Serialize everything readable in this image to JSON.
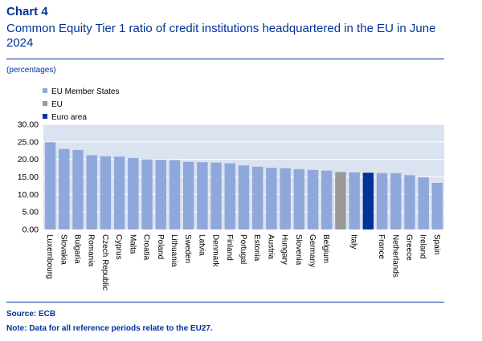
{
  "header": {
    "chart_number": "Chart 4",
    "title": "Common Equity Tier 1 ratio of credit institutions headquartered in the EU in June 2024",
    "units": "(percentages)"
  },
  "footer": {
    "source": "Source: ECB",
    "note": "Note: Data for all reference periods relate to the EU27."
  },
  "colors": {
    "member": "#8FA8DC",
    "eu": "#999999",
    "euro_area": "#003299",
    "plot_bg": "#DCE3F0",
    "grid": "#FFFFFF",
    "text": "#003299",
    "axis_text": "#000000"
  },
  "chart_data": {
    "type": "bar",
    "title": "Common Equity Tier 1 ratio of credit institutions headquartered in the EU in June 2024",
    "ylabel": "(percentages)",
    "xlabel": "",
    "ylim": [
      0,
      30
    ],
    "yticks": [
      "0.00",
      "5.00",
      "10.00",
      "15.00",
      "20.00",
      "25.00",
      "30.00"
    ],
    "grid": true,
    "legend_position": "top-left",
    "legend": [
      {
        "label": "EU Member States",
        "group": "member"
      },
      {
        "label": "EU",
        "group": "eu"
      },
      {
        "label": "Euro area",
        "group": "euro_area"
      }
    ],
    "categories": [
      "Luxembourg",
      "Slovakia",
      "Bulgaria",
      "Romania",
      "Czech Republic",
      "Cyprus",
      "Malta",
      "Croatia",
      "Poland",
      "Lithuania",
      "Sweden",
      "Latvia",
      "Denmark",
      "Finland",
      "Portugal",
      "Estonia",
      "Austria",
      "Hungary",
      "Slovenia",
      "Germany",
      "Belgium",
      "",
      "Italy",
      "",
      "France",
      "Netherlands",
      "Greece",
      "Ireland",
      "Spain"
    ],
    "groups": [
      "member",
      "member",
      "member",
      "member",
      "member",
      "member",
      "member",
      "member",
      "member",
      "member",
      "member",
      "member",
      "member",
      "member",
      "member",
      "member",
      "member",
      "member",
      "member",
      "member",
      "member",
      "eu",
      "member",
      "euro_area",
      "member",
      "member",
      "member",
      "member",
      "member"
    ],
    "values": [
      24.9,
      23.0,
      22.7,
      21.2,
      20.9,
      20.8,
      20.4,
      20.0,
      19.9,
      19.8,
      19.3,
      19.2,
      19.1,
      18.9,
      18.3,
      17.9,
      17.6,
      17.5,
      17.2,
      17.0,
      16.8,
      16.4,
      16.3,
      16.2,
      16.1,
      16.1,
      15.5,
      14.9,
      13.3
    ]
  }
}
